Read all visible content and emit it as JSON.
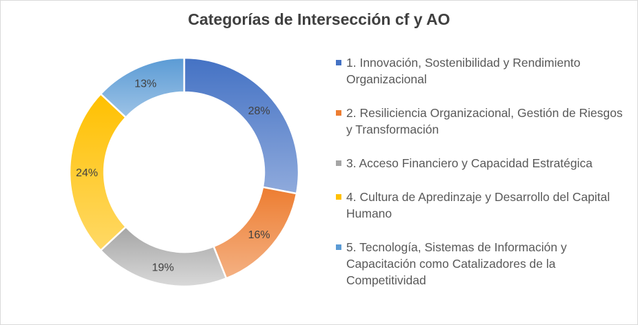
{
  "chart_data": {
    "type": "pie",
    "title": "Categorías de Intersección cf y AO",
    "categories": [
      "1. Innovación, Sostenibilidad y Rendimiento Organizacional",
      "2. Resiliciencia Organizacional, Gestión de Riesgos y Transformación",
      "3. Acceso Financiero y Capacidad Estratégica",
      "4. Cultura de Apredinzaje y Desarrollo del Capital Humano",
      "5. Tecnología, Sistemas de Información y Capacitación como Catalizadores de la Competitividad"
    ],
    "values": [
      28,
      16,
      19,
      24,
      13
    ],
    "value_labels": [
      "28%",
      "16%",
      "19%",
      "24%",
      "13%"
    ],
    "colors": [
      [
        "#4472c4",
        "#8faadc"
      ],
      [
        "#ed7d31",
        "#f4b183"
      ],
      [
        "#a5a5a5",
        "#d9d9d9"
      ],
      [
        "#ffc000",
        "#ffd966"
      ],
      [
        "#5b9bd5",
        "#9dc3e6"
      ]
    ],
    "legend_position": "right",
    "donut": true
  }
}
